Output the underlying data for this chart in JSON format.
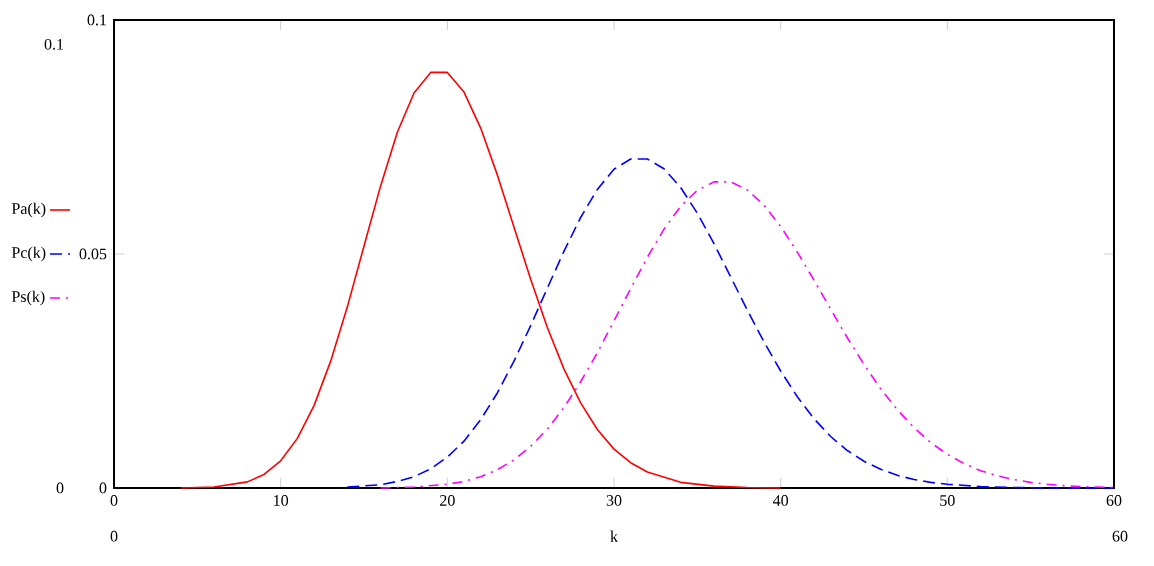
{
  "chart_data": {
    "type": "line",
    "xlabel": "k",
    "xlim": [
      0,
      60
    ],
    "ylim": [
      0,
      0.1
    ],
    "xticks": [
      0,
      10,
      20,
      30,
      40,
      50,
      60
    ],
    "yticks": [
      0,
      0.05,
      0.1
    ],
    "grid": false,
    "legend": "left",
    "marker": "none",
    "annotations": [
      "0.1",
      "0",
      "0",
      "60"
    ],
    "series": [
      {
        "name": "Pa(k)",
        "color": "#ff0000",
        "line_style": "solid",
        "x": [
          4,
          6,
          8,
          9,
          10,
          11,
          12,
          13,
          14,
          15,
          16,
          17,
          18,
          19,
          20,
          21,
          22,
          23,
          24,
          25,
          26,
          27,
          28,
          29,
          30,
          31,
          32,
          34,
          36,
          38,
          40
        ],
        "values": [
          0,
          0.0002,
          0.0013,
          0.0029,
          0.0058,
          0.0106,
          0.0176,
          0.0271,
          0.0387,
          0.0517,
          0.0646,
          0.076,
          0.0844,
          0.0888,
          0.0888,
          0.0846,
          0.0769,
          0.0669,
          0.0557,
          0.0446,
          0.0343,
          0.0254,
          0.0182,
          0.0125,
          0.0083,
          0.0054,
          0.0034,
          0.0012,
          0.0004,
          0.0001,
          0
        ]
      },
      {
        "name": "Pc(k)",
        "color": "#0000ff",
        "line_style": "dashed",
        "x": [
          14,
          16,
          17,
          18,
          19,
          20,
          21,
          22,
          23,
          24,
          25,
          26,
          27,
          28,
          29,
          30,
          31,
          32,
          33,
          34,
          35,
          36,
          37,
          38,
          39,
          40,
          41,
          42,
          43,
          44,
          45,
          46,
          47,
          48,
          49,
          50,
          52,
          54,
          56,
          58,
          60
        ],
        "values": [
          0.0002,
          0.0007,
          0.0014,
          0.0024,
          0.0041,
          0.0066,
          0.01,
          0.0146,
          0.0203,
          0.0271,
          0.0347,
          0.0427,
          0.0506,
          0.0578,
          0.0638,
          0.0681,
          0.0703,
          0.0703,
          0.0682,
          0.0642,
          0.0587,
          0.0522,
          0.0451,
          0.038,
          0.0312,
          0.025,
          0.0195,
          0.0148,
          0.011,
          0.008,
          0.0057,
          0.004,
          0.0027,
          0.0018,
          0.0012,
          0.0008,
          0.0003,
          0.0001,
          0,
          0,
          0
        ]
      },
      {
        "name": "Ps(k)",
        "color": "#ff00ff",
        "line_style": "dashdot",
        "x": [
          16,
          18,
          20,
          21,
          22,
          23,
          24,
          25,
          26,
          27,
          28,
          29,
          30,
          31,
          32,
          33,
          34,
          35,
          36,
          37,
          38,
          39,
          40,
          41,
          42,
          43,
          44,
          45,
          46,
          47,
          48,
          49,
          50,
          51,
          52,
          53,
          54,
          55,
          56,
          57,
          58,
          59,
          60
        ],
        "values": [
          0,
          0.0002,
          0.0008,
          0.0014,
          0.0024,
          0.0039,
          0.006,
          0.0089,
          0.0126,
          0.0172,
          0.0227,
          0.0289,
          0.0357,
          0.0426,
          0.0493,
          0.0553,
          0.0602,
          0.0636,
          0.0654,
          0.0654,
          0.0637,
          0.0604,
          0.0559,
          0.0504,
          0.0444,
          0.0382,
          0.0321,
          0.0264,
          0.0212,
          0.0167,
          0.0129,
          0.0097,
          0.0072,
          0.0052,
          0.0037,
          0.0026,
          0.0018,
          0.0012,
          0.0008,
          0.0005,
          0.0003,
          0.0002,
          0.0001
        ]
      }
    ]
  }
}
